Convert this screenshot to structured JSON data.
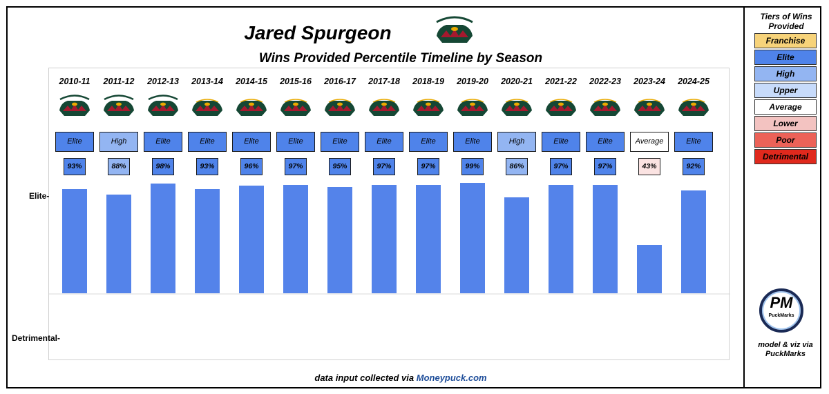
{
  "title": "Jared Spurgeon",
  "subtitle": "Wins Provided Percentile Timeline by Season",
  "footer": {
    "prefix": "data input collected via ",
    "link": "Moneypuck.com"
  },
  "legend": {
    "title": "Tiers of Wins Provided",
    "tiers": [
      {
        "label": "Franchise",
        "color": "#f7d37a"
      },
      {
        "label": "Elite",
        "color": "#4f83ea"
      },
      {
        "label": "High",
        "color": "#93b5f2"
      },
      {
        "label": "Upper",
        "color": "#c7dbfb"
      },
      {
        "label": "Average",
        "color": "#ffffff"
      },
      {
        "label": "Lower",
        "color": "#f3c3c1"
      },
      {
        "label": "Poor",
        "color": "#ec6258"
      },
      {
        "label": "Detrimental",
        "color": "#e0291d"
      }
    ]
  },
  "brand": {
    "logo_text": "PM",
    "logo_name": "PuckMarks",
    "credit": "model & viz via PuckMarks"
  },
  "icons": {
    "team_logo": "minnesota-wild-logo",
    "brand_logo": "puckmarks-logo"
  },
  "chart_data": {
    "type": "bar",
    "title": "Wins Provided Percentile Timeline by Season",
    "categories": [
      "2010-11",
      "2011-12",
      "2012-13",
      "2013-14",
      "2014-15",
      "2015-16",
      "2016-17",
      "2017-18",
      "2018-19",
      "2019-20",
      "2020-21",
      "2021-22",
      "2022-23",
      "2023-24",
      "2024-25"
    ],
    "values": [
      93,
      88,
      98,
      93,
      96,
      97,
      95,
      97,
      97,
      99,
      86,
      97,
      97,
      43,
      92
    ],
    "value_labels": [
      "93%",
      "88%",
      "98%",
      "93%",
      "96%",
      "97%",
      "95%",
      "97%",
      "97%",
      "99%",
      "86%",
      "97%",
      "97%",
      "43%",
      "92%"
    ],
    "tiers": [
      "Elite",
      "High",
      "Elite",
      "Elite",
      "Elite",
      "Elite",
      "Elite",
      "Elite",
      "Elite",
      "Elite",
      "High",
      "Elite",
      "Elite",
      "Average",
      "Elite"
    ],
    "logo_style": [
      "old",
      "old",
      "old",
      "new",
      "new",
      "new",
      "new",
      "new",
      "new",
      "new",
      "new",
      "new",
      "new",
      "new",
      "new"
    ],
    "y_axis_labels": [
      "Elite-",
      "Detrimental-"
    ],
    "grid": false,
    "legend_position": "right"
  }
}
